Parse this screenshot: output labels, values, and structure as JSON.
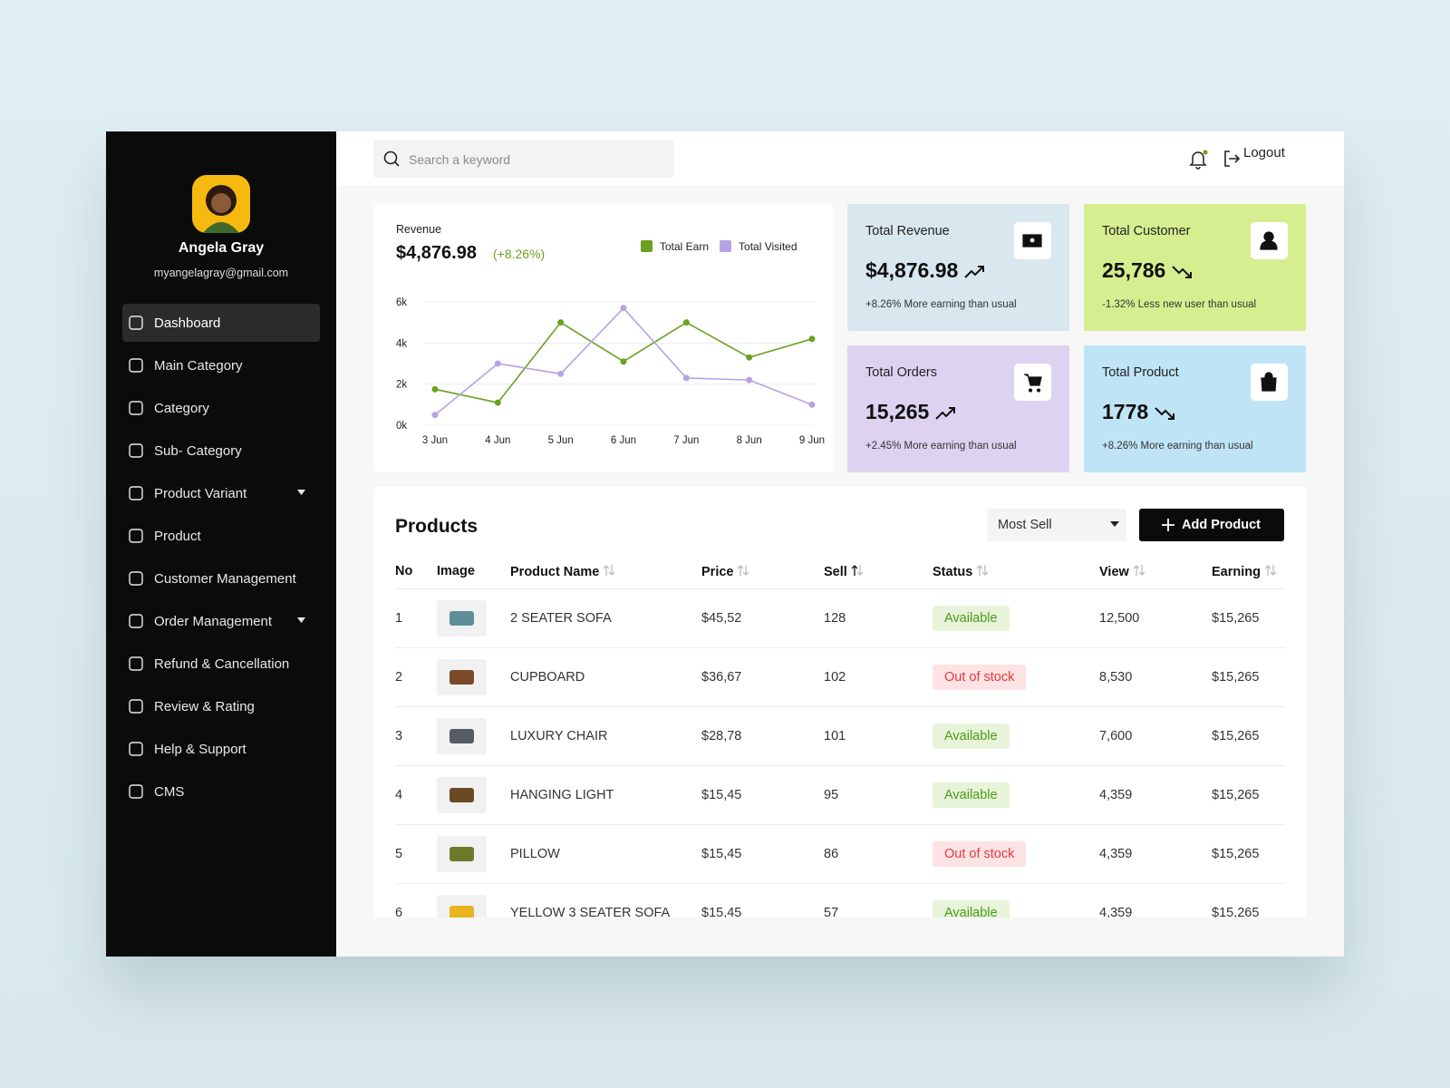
{
  "sidebar": {
    "user": {
      "name": "Angela Gray",
      "email": "myangelagray@gmail.com"
    },
    "nav": [
      {
        "label": "Dashboard",
        "active": true
      },
      {
        "label": "Main Category"
      },
      {
        "label": "Category"
      },
      {
        "label": "Sub- Category"
      },
      {
        "label": "Product Variant",
        "dropdown": true
      },
      {
        "label": "Product"
      },
      {
        "label": "Customer Management"
      },
      {
        "label": "Order Management",
        "dropdown": true
      },
      {
        "label": "Refund & Cancellation"
      },
      {
        "label": "Review & Rating"
      },
      {
        "label": "Help & Support"
      },
      {
        "label": "CMS"
      }
    ]
  },
  "header": {
    "search_placeholder": "Search a keyword",
    "logout": "Logout"
  },
  "chart_data": {
    "type": "line",
    "title": "Revenue",
    "value_text": "$4,876.98",
    "change_text": "(+8.26%)",
    "categories": [
      "3 Jun",
      "4 Jun",
      "5 Jun",
      "6 Jun",
      "7 Jun",
      "8 Jun",
      "9 Jun"
    ],
    "series": [
      {
        "name": "Total Earn",
        "color": "#6aa121",
        "values": [
          1750,
          1100,
          5000,
          3100,
          5000,
          3300,
          4200
        ]
      },
      {
        "name": "Total Visited",
        "color": "#b7a3e3",
        "values": [
          500,
          3000,
          2500,
          5700,
          2300,
          2200,
          1000
        ]
      }
    ],
    "ylim": [
      0,
      6000
    ],
    "yticks": [
      {
        "value": 0,
        "label": "0k"
      },
      {
        "value": 2000,
        "label": "2k"
      },
      {
        "value": 4000,
        "label": "4k"
      },
      {
        "value": 6000,
        "label": "6k"
      }
    ],
    "grid": true
  },
  "stats": [
    {
      "title": "Total Revenue",
      "value": "$4,876.98",
      "change": "+8.26% More earning than usual",
      "trend": "up",
      "color": "#d9e7ee",
      "icon": "money"
    },
    {
      "title": "Total Customer",
      "value": "25,786",
      "change": "-1.32% Less new user than usual",
      "trend": "down",
      "color": "#d6ee8f",
      "icon": "user"
    },
    {
      "title": "Total Orders",
      "value": "15,265",
      "change": "+2.45% More earning than usual",
      "trend": "up",
      "color": "#ddd3f1",
      "icon": "cart"
    },
    {
      "title": "Total Product",
      "value": "1778",
      "change": "+8.26% More earning than usual",
      "trend": "down",
      "color": "#bfe4f6",
      "icon": "bag"
    }
  ],
  "products": {
    "title": "Products",
    "sort_select": "Most Sell",
    "add_button": "Add Product",
    "columns": [
      {
        "label": "No"
      },
      {
        "label": "Image"
      },
      {
        "label": "Product Name",
        "sort": "both"
      },
      {
        "label": "Price",
        "sort": "both"
      },
      {
        "label": "Sell",
        "sort": "asc"
      },
      {
        "label": "Status",
        "sort": "both"
      },
      {
        "label": "View",
        "sort": "both"
      },
      {
        "label": "Earning",
        "sort": "both"
      }
    ],
    "rows": [
      {
        "no": "1",
        "name": "2 SEATER SOFA",
        "price": "$45,52",
        "sell": "128",
        "status": "Available",
        "tone": "positive",
        "view": "12,500",
        "earning": "$15,265"
      },
      {
        "no": "2",
        "name": "CUPBOARD",
        "price": "$36,67",
        "sell": "102",
        "status": "Out of stock",
        "tone": "negative",
        "view": "8,530",
        "earning": "$15,265"
      },
      {
        "no": "3",
        "name": "LUXURY CHAIR",
        "price": "$28,78",
        "sell": "101",
        "status": "Available",
        "tone": "positive",
        "view": "7,600",
        "earning": "$15,265"
      },
      {
        "no": "4",
        "name": "HANGING LIGHT",
        "price": "$15,45",
        "sell": "95",
        "status": "Available",
        "tone": "positive",
        "view": "4,359",
        "earning": "$15,265"
      },
      {
        "no": "5",
        "name": "PILLOW",
        "price": "$15,45",
        "sell": "86",
        "status": "Out of stock",
        "tone": "negative",
        "view": "4,359",
        "earning": "$15,265"
      },
      {
        "no": "6",
        "name": "YELLOW 3 SEATER SOFA",
        "price": "$15,45",
        "sell": "57",
        "status": "Available",
        "tone": "positive",
        "view": "4,359",
        "earning": "$15,265"
      }
    ]
  }
}
